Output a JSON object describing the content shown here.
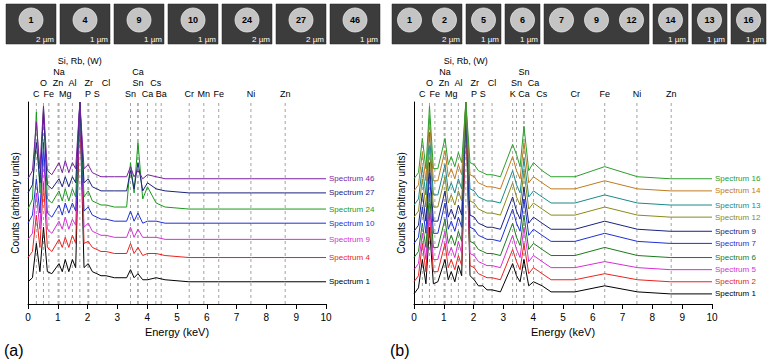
{
  "chart_data": [
    {
      "type": "line",
      "title": "(a)",
      "xlabel": "Energy (keV)",
      "ylabel": "Counts (arbitrary units)",
      "x": [
        0,
        0.15,
        0.28,
        0.4,
        0.52,
        0.65,
        0.8,
        1.04,
        1.15,
        1.25,
        1.37,
        1.49,
        1.6,
        1.74,
        1.88,
        2.02,
        2.16,
        2.31,
        2.45,
        2.62,
        2.9,
        3.31,
        3.44,
        3.56,
        3.69,
        3.85,
        4.01,
        4.3,
        4.6,
        5.4,
        6.4,
        7.5,
        8.6,
        10
      ],
      "xlim": [
        0,
        10
      ],
      "xticks": [
        0,
        1,
        2,
        3,
        4,
        5,
        6,
        7,
        8,
        9,
        10
      ],
      "ylim": [
        0,
        100
      ],
      "tick_labels": "x",
      "grid": false,
      "series": [
        {
          "name": "Spectrum 1",
          "color": "#000000",
          "values": [
            11,
            13,
            30,
            16,
            38,
            16,
            15,
            20,
            16,
            22,
            16,
            22,
            18,
            98,
            18,
            20,
            16,
            15,
            14,
            14,
            13,
            13,
            17,
            13,
            15,
            12,
            12,
            13,
            12,
            11,
            11,
            11,
            11,
            11
          ]
        },
        {
          "name": "Spectrum 4",
          "color": "#e8231f",
          "values": [
            23,
            26,
            44,
            28,
            60,
            28,
            26,
            32,
            28,
            33,
            28,
            34,
            30,
            99,
            30,
            31,
            28,
            27,
            26,
            26,
            25,
            25,
            30,
            25,
            28,
            24,
            25,
            25,
            24,
            23,
            23,
            23,
            23,
            23
          ]
        },
        {
          "name": "Spectrum 9",
          "color": "#d62fd6",
          "values": [
            32,
            35,
            55,
            37,
            75,
            37,
            35,
            41,
            37,
            43,
            37,
            42,
            39,
            99,
            38,
            40,
            36,
            35,
            34,
            34,
            33,
            33,
            38,
            33,
            37,
            33,
            33,
            33,
            32,
            32,
            32,
            32,
            32,
            32
          ]
        },
        {
          "name": "Spectrum 10",
          "color": "#1f2fd6",
          "values": [
            40,
            44,
            62,
            45,
            80,
            45,
            43,
            49,
            44,
            50,
            45,
            50,
            46,
            100,
            46,
            48,
            44,
            43,
            42,
            42,
            41,
            41,
            46,
            41,
            45,
            40,
            41,
            41,
            40,
            40,
            40,
            40,
            40,
            40
          ]
        },
        {
          "name": "Spectrum 24",
          "color": "#1a9a1a",
          "values": [
            47,
            52,
            95,
            55,
            97,
            52,
            50,
            56,
            51,
            57,
            51,
            57,
            53,
            100,
            53,
            56,
            51,
            50,
            49,
            49,
            48,
            48,
            70,
            55,
            80,
            52,
            58,
            50,
            48,
            47,
            47,
            47,
            47,
            47
          ]
        },
        {
          "name": "Spectrum 27",
          "color": "#1a237e",
          "values": [
            55,
            59,
            80,
            60,
            95,
            59,
            57,
            62,
            58,
            63,
            58,
            63,
            60,
            100,
            60,
            62,
            58,
            57,
            56,
            56,
            56,
            56,
            66,
            57,
            70,
            56,
            60,
            57,
            56,
            55,
            55,
            55,
            55,
            55
          ]
        },
        {
          "name": "Spectrum 46",
          "color": "#7a1fa2",
          "values": [
            62,
            66,
            90,
            67,
            98,
            66,
            64,
            70,
            65,
            71,
            65,
            70,
            67,
            100,
            67,
            69,
            65,
            64,
            63,
            63,
            63,
            63,
            68,
            63,
            66,
            62,
            64,
            63,
            62,
            62,
            62,
            62,
            62,
            62
          ]
        }
      ],
      "annotations": [
        {
          "text": "C",
          "x": 0.28
        },
        {
          "text": "O",
          "x": 0.52
        },
        {
          "text": "Fe",
          "x": 0.7
        },
        {
          "text": "Zn",
          "x": 1.01
        },
        {
          "text": "Na",
          "x": 1.04
        },
        {
          "text": "Mg",
          "x": 1.25
        },
        {
          "text": "Al",
          "x": 1.49
        },
        {
          "text": "Si, Rb, (W)",
          "x": 1.74
        },
        {
          "text": "P",
          "x": 2.01
        },
        {
          "text": "Zr",
          "x": 2.04
        },
        {
          "text": "S",
          "x": 2.31
        },
        {
          "text": "Cl",
          "x": 2.62
        },
        {
          "text": "Sn",
          "x": 3.44
        },
        {
          "text": "Sn",
          "x": 3.69
        },
        {
          "text": "Ca",
          "x": 3.69
        },
        {
          "text": "Ca",
          "x": 4.01
        },
        {
          "text": "Cs",
          "x": 4.29
        },
        {
          "text": "Ba",
          "x": 4.47
        },
        {
          "text": "Cr",
          "x": 5.41
        },
        {
          "text": "Mn",
          "x": 5.9
        },
        {
          "text": "Fe",
          "x": 6.4
        },
        {
          "text": "Ni",
          "x": 7.48
        },
        {
          "text": "Zn",
          "x": 8.63
        }
      ],
      "insets": [
        {
          "labels": [
            "1"
          ],
          "scale": "2 µm"
        },
        {
          "labels": [
            "4"
          ],
          "scale": "1 µm"
        },
        {
          "labels": [
            "9"
          ],
          "scale": "1 µm"
        },
        {
          "labels": [
            "10"
          ],
          "scale": "1 µm"
        },
        {
          "labels": [
            "24"
          ],
          "scale": "2 µm"
        },
        {
          "labels": [
            "27"
          ],
          "scale": "2 µm"
        },
        {
          "labels": [
            "46"
          ],
          "scale": "1 µm"
        }
      ]
    },
    {
      "type": "line",
      "title": "(b)",
      "xlabel": "Energy (keV)",
      "ylabel": "Counts (arbitrary units)",
      "x": [
        0,
        0.15,
        0.28,
        0.4,
        0.52,
        0.65,
        0.8,
        1.04,
        1.15,
        1.25,
        1.37,
        1.49,
        1.6,
        1.74,
        1.88,
        2.02,
        2.16,
        2.31,
        2.45,
        2.62,
        2.9,
        3.31,
        3.44,
        3.56,
        3.69,
        3.85,
        4.01,
        4.3,
        4.6,
        5.4,
        6.4,
        7.5,
        8.6,
        10
      ],
      "xlim": [
        0,
        10
      ],
      "xticks": [
        0,
        1,
        2,
        3,
        4,
        5,
        6,
        7,
        8,
        9,
        10
      ],
      "ylim": [
        0,
        100
      ],
      "tick_labels": "x",
      "grid": false,
      "series": [
        {
          "name": "Spectrum 1",
          "color": "#000000",
          "values": [
            5,
            8,
            22,
            10,
            38,
            10,
            11,
            22,
            12,
            16,
            11,
            19,
            14,
            97,
            14,
            12,
            9,
            9,
            7,
            7,
            6,
            20,
            14,
            11,
            22,
            9,
            11,
            9,
            6,
            6,
            9,
            6,
            5,
            5
          ]
        },
        {
          "name": "Spectrum 2",
          "color": "#e8231f",
          "values": [
            11,
            14,
            30,
            16,
            45,
            16,
            16,
            30,
            18,
            22,
            17,
            24,
            19,
            98,
            19,
            18,
            15,
            14,
            13,
            13,
            12,
            27,
            21,
            17,
            30,
            15,
            18,
            15,
            12,
            12,
            15,
            12,
            11,
            11
          ]
        },
        {
          "name": "Spectrum 5",
          "color": "#d62fd6",
          "values": [
            17,
            20,
            35,
            22,
            50,
            22,
            22,
            36,
            24,
            28,
            23,
            31,
            25,
            98,
            25,
            24,
            21,
            20,
            19,
            19,
            18,
            34,
            27,
            23,
            38,
            21,
            24,
            21,
            18,
            18,
            21,
            18,
            17,
            17
          ]
        },
        {
          "name": "Spectrum 6",
          "color": "#1a7a1a",
          "values": [
            23,
            26,
            40,
            28,
            55,
            28,
            28,
            42,
            30,
            34,
            29,
            36,
            31,
            99,
            31,
            30,
            27,
            26,
            25,
            25,
            24,
            40,
            33,
            29,
            44,
            27,
            30,
            27,
            24,
            24,
            28,
            24,
            23,
            23
          ]
        },
        {
          "name": "Spectrum 7",
          "color": "#1f2fd6",
          "values": [
            30,
            33,
            48,
            35,
            65,
            35,
            35,
            50,
            37,
            41,
            36,
            43,
            38,
            99,
            38,
            37,
            34,
            33,
            32,
            32,
            31,
            47,
            40,
            36,
            52,
            34,
            37,
            34,
            31,
            31,
            35,
            31,
            30,
            30
          ]
        },
        {
          "name": "Spectrum 9",
          "color": "#1a237e",
          "values": [
            36,
            39,
            55,
            41,
            70,
            41,
            41,
            56,
            43,
            47,
            42,
            49,
            44,
            100,
            44,
            43,
            40,
            39,
            38,
            38,
            37,
            53,
            46,
            42,
            58,
            40,
            43,
            40,
            37,
            37,
            41,
            37,
            36,
            36
          ]
        },
        {
          "name": "Spectrum 12",
          "color": "#8a8a1a",
          "values": [
            43,
            46,
            62,
            48,
            78,
            48,
            48,
            63,
            50,
            54,
            49,
            56,
            51,
            100,
            51,
            50,
            47,
            46,
            45,
            45,
            44,
            60,
            53,
            49,
            66,
            47,
            50,
            47,
            44,
            44,
            48,
            44,
            43,
            43
          ]
        },
        {
          "name": "Spectrum 13",
          "color": "#1a8a8a",
          "values": [
            49,
            52,
            68,
            54,
            85,
            54,
            54,
            69,
            56,
            60,
            55,
            62,
            57,
            100,
            57,
            56,
            53,
            52,
            51,
            51,
            50,
            66,
            59,
            55,
            72,
            53,
            56,
            53,
            50,
            50,
            54,
            50,
            49,
            49
          ]
        },
        {
          "name": "Spectrum 14",
          "color": "#c07a20",
          "values": [
            56,
            59,
            75,
            61,
            92,
            61,
            61,
            76,
            63,
            67,
            62,
            69,
            64,
            100,
            64,
            63,
            60,
            59,
            58,
            58,
            57,
            73,
            66,
            62,
            80,
            60,
            63,
            60,
            57,
            57,
            61,
            57,
            56,
            56
          ]
        },
        {
          "name": "Spectrum 16",
          "color": "#2aa02a",
          "values": [
            62,
            65,
            82,
            67,
            98,
            67,
            67,
            82,
            69,
            73,
            68,
            75,
            70,
            100,
            70,
            69,
            66,
            65,
            64,
            64,
            63,
            79,
            74,
            68,
            88,
            66,
            70,
            66,
            63,
            63,
            68,
            63,
            62,
            62
          ]
        }
      ],
      "annotations": [
        {
          "text": "C",
          "x": 0.28
        },
        {
          "text": "O",
          "x": 0.52
        },
        {
          "text": "Fe",
          "x": 0.7
        },
        {
          "text": "Zn",
          "x": 1.01
        },
        {
          "text": "Na",
          "x": 1.04
        },
        {
          "text": "Mg",
          "x": 1.25
        },
        {
          "text": "Al",
          "x": 1.49
        },
        {
          "text": "Si, Rb, (W)",
          "x": 1.74
        },
        {
          "text": "P",
          "x": 2.01
        },
        {
          "text": "Zr",
          "x": 2.04
        },
        {
          "text": "S",
          "x": 2.31
        },
        {
          "text": "Cl",
          "x": 2.62
        },
        {
          "text": "K",
          "x": 3.31
        },
        {
          "text": "Sn",
          "x": 3.44
        },
        {
          "text": "Ca",
          "x": 3.69
        },
        {
          "text": "Sn",
          "x": 3.69
        },
        {
          "text": "Ca",
          "x": 4.01
        },
        {
          "text": "Cs",
          "x": 4.29
        },
        {
          "text": "Cr",
          "x": 5.41
        },
        {
          "text": "Fe",
          "x": 6.4
        },
        {
          "text": "Ni",
          "x": 7.48
        },
        {
          "text": "Zn",
          "x": 8.63
        }
      ],
      "insets": [
        {
          "labels": [
            "1",
            "2"
          ],
          "scale": "2 µm"
        },
        {
          "labels": [
            "5"
          ],
          "scale": "1 µm"
        },
        {
          "labels": [
            "6"
          ],
          "scale": "1 µm"
        },
        {
          "labels": [
            "7",
            "9",
            "12"
          ]
        },
        {
          "labels": [
            "14"
          ],
          "scale": "1 µm"
        },
        {
          "labels": [
            "13"
          ],
          "scale": "1 µm"
        },
        {
          "labels": [
            "16"
          ],
          "scale": "1 µm"
        }
      ]
    }
  ]
}
